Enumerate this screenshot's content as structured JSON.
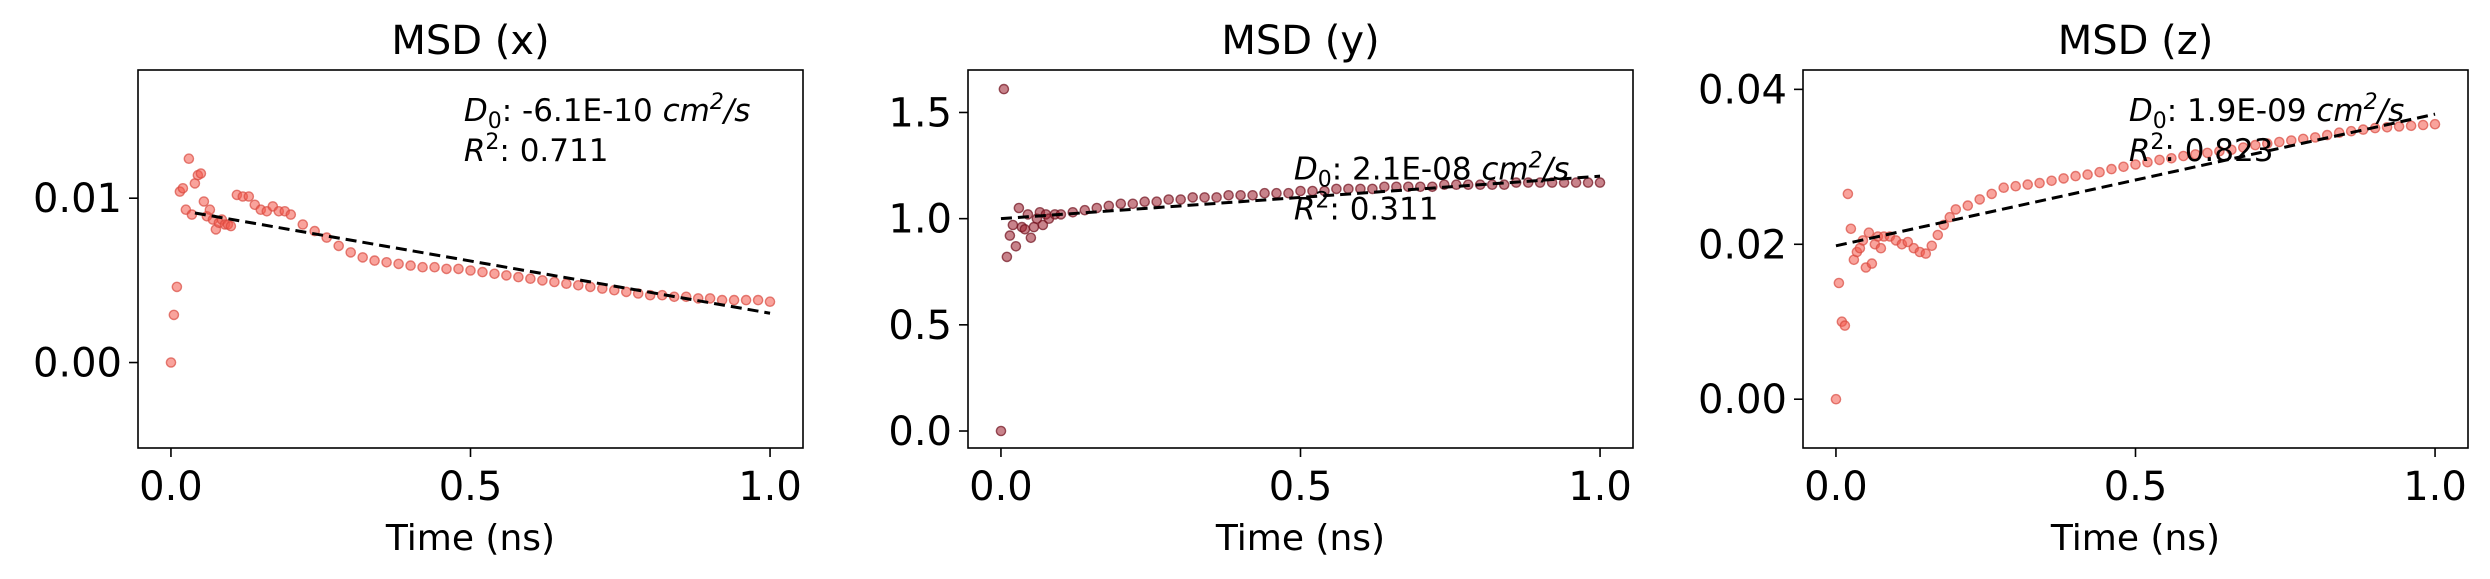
{
  "chart_data": [
    {
      "type": "scatter",
      "title": "MSD (x)",
      "xlabel": "Time (ns)",
      "ylabel": "",
      "xlim": [
        -0.055,
        1.055
      ],
      "ylim": [
        -0.0052,
        0.0178
      ],
      "xticks": [
        "0.0",
        "0.5",
        "1.0"
      ],
      "xtick_values": [
        0,
        0.5,
        1.0
      ],
      "yticks": [
        "0.00",
        "0.01"
      ],
      "ytick_values": [
        0,
        0.01
      ],
      "annotation_d0_label": "D",
      "annotation_d0_sub": "0",
      "annotation_d0_value": ": -6.1E-10 ",
      "annotation_unit": "cm",
      "annotation_unit_exp": "2",
      "annotation_unit_tail": "/s",
      "annotation_r2_label": "R",
      "annotation_r2_exp": "2",
      "annotation_r2_value": ": 0.711",
      "marker_color": "#f4574b",
      "marker_edge": "#d94a40",
      "fit": {
        "x": [
          0.04,
          1.0
        ],
        "y": [
          0.0091,
          0.003
        ]
      },
      "series": [
        {
          "x": [
            0.0,
            0.005,
            0.01,
            0.015,
            0.02,
            0.025,
            0.03,
            0.035,
            0.04,
            0.045,
            0.05,
            0.055,
            0.06,
            0.065,
            0.07,
            0.075,
            0.08,
            0.085,
            0.09,
            0.095,
            0.1,
            0.11,
            0.12,
            0.13,
            0.14,
            0.15,
            0.16,
            0.17,
            0.18,
            0.19,
            0.2,
            0.22,
            0.24,
            0.26,
            0.28,
            0.3,
            0.32,
            0.34,
            0.36,
            0.38,
            0.4,
            0.42,
            0.44,
            0.46,
            0.48,
            0.5,
            0.52,
            0.54,
            0.56,
            0.58,
            0.6,
            0.62,
            0.64,
            0.66,
            0.68,
            0.7,
            0.72,
            0.74,
            0.76,
            0.78,
            0.8,
            0.82,
            0.84,
            0.86,
            0.88,
            0.9,
            0.92,
            0.94,
            0.96,
            0.98,
            1.0
          ],
          "y": [
            0.0,
            0.0029,
            0.0046,
            0.0104,
            0.0106,
            0.0093,
            0.0124,
            0.009,
            0.0109,
            0.0114,
            0.0115,
            0.0098,
            0.0089,
            0.0093,
            0.0087,
            0.0081,
            0.0085,
            0.0087,
            0.0084,
            0.0084,
            0.0083,
            0.0102,
            0.0101,
            0.0101,
            0.0096,
            0.0093,
            0.0092,
            0.0095,
            0.0092,
            0.0092,
            0.009,
            0.0084,
            0.008,
            0.0076,
            0.0071,
            0.0067,
            0.0064,
            0.0062,
            0.0061,
            0.006,
            0.0059,
            0.0058,
            0.0058,
            0.0057,
            0.0057,
            0.0056,
            0.0055,
            0.0054,
            0.0053,
            0.0052,
            0.0051,
            0.005,
            0.0049,
            0.0048,
            0.0047,
            0.0046,
            0.0045,
            0.0044,
            0.0043,
            0.0042,
            0.0041,
            0.0041,
            0.004,
            0.004,
            0.0039,
            0.0039,
            0.0038,
            0.0038,
            0.0038,
            0.0038,
            0.0037
          ]
        }
      ]
    },
    {
      "type": "scatter",
      "title": "MSD (y)",
      "xlabel": "Time (ns)",
      "ylabel": "",
      "xlim": [
        -0.055,
        1.055
      ],
      "ylim": [
        -0.08,
        1.7
      ],
      "xticks": [
        "0.0",
        "0.5",
        "1.0"
      ],
      "xtick_values": [
        0,
        0.5,
        1.0
      ],
      "yticks": [
        "0.0",
        "0.5",
        "1.0",
        "1.5"
      ],
      "ytick_values": [
        0,
        0.5,
        1.0,
        1.5
      ],
      "annotation_d0_label": "D",
      "annotation_d0_sub": "0",
      "annotation_d0_value": ": 2.1E-08 ",
      "annotation_unit": "cm",
      "annotation_unit_exp": "2",
      "annotation_unit_tail": "/s",
      "annotation_r2_label": "R",
      "annotation_r2_exp": "2",
      "annotation_r2_value": ": 0.311",
      "marker_color": "#9a1d2c",
      "marker_edge": "#6f0f1c",
      "fit": {
        "x": [
          0.0,
          1.0
        ],
        "y": [
          1.0,
          1.2
        ]
      },
      "series": [
        {
          "x": [
            0.0,
            0.005,
            0.01,
            0.015,
            0.02,
            0.025,
            0.03,
            0.035,
            0.04,
            0.045,
            0.05,
            0.055,
            0.06,
            0.065,
            0.07,
            0.075,
            0.08,
            0.09,
            0.1,
            0.12,
            0.14,
            0.16,
            0.18,
            0.2,
            0.22,
            0.24,
            0.26,
            0.28,
            0.3,
            0.32,
            0.34,
            0.36,
            0.38,
            0.4,
            0.42,
            0.44,
            0.46,
            0.48,
            0.5,
            0.52,
            0.54,
            0.56,
            0.58,
            0.6,
            0.62,
            0.64,
            0.66,
            0.68,
            0.7,
            0.72,
            0.74,
            0.76,
            0.78,
            0.8,
            0.82,
            0.84,
            0.86,
            0.88,
            0.9,
            0.92,
            0.94,
            0.96,
            0.98,
            1.0
          ],
          "y": [
            0.0,
            1.61,
            0.82,
            0.92,
            0.97,
            0.87,
            1.05,
            0.96,
            0.95,
            1.02,
            0.91,
            0.96,
            1.0,
            1.03,
            0.97,
            1.02,
            1.0,
            1.02,
            1.02,
            1.03,
            1.04,
            1.05,
            1.06,
            1.07,
            1.07,
            1.08,
            1.08,
            1.09,
            1.09,
            1.1,
            1.1,
            1.1,
            1.11,
            1.11,
            1.11,
            1.12,
            1.12,
            1.12,
            1.13,
            1.13,
            1.13,
            1.14,
            1.14,
            1.14,
            1.14,
            1.15,
            1.15,
            1.15,
            1.15,
            1.15,
            1.16,
            1.16,
            1.16,
            1.16,
            1.16,
            1.16,
            1.17,
            1.17,
            1.17,
            1.17,
            1.17,
            1.17,
            1.17,
            1.17
          ]
        }
      ]
    },
    {
      "type": "scatter",
      "title": "MSD (z)",
      "xlabel": "Time (ns)",
      "ylabel": "",
      "xlim": [
        -0.055,
        1.055
      ],
      "ylim": [
        -0.0063,
        0.0425
      ],
      "xticks": [
        "0.0",
        "0.5",
        "1.0"
      ],
      "xtick_values": [
        0,
        0.5,
        1.0
      ],
      "yticks": [
        "0.00",
        "0.02",
        "0.04"
      ],
      "ytick_values": [
        0,
        0.02,
        0.04
      ],
      "annotation_d0_label": "D",
      "annotation_d0_sub": "0",
      "annotation_d0_value": ": 1.9E-09 ",
      "annotation_unit": "cm",
      "annotation_unit_exp": "2",
      "annotation_unit_tail": "/s",
      "annotation_r2_label": "R",
      "annotation_r2_exp": "2",
      "annotation_r2_value": ": 0.823",
      "marker_color": "#f4574b",
      "marker_edge": "#d94a40",
      "fit": {
        "x": [
          0.0,
          1.0
        ],
        "y": [
          0.0198,
          0.0368
        ]
      },
      "series": [
        {
          "x": [
            0.0,
            0.005,
            0.01,
            0.015,
            0.02,
            0.025,
            0.03,
            0.035,
            0.04,
            0.045,
            0.05,
            0.055,
            0.06,
            0.065,
            0.07,
            0.075,
            0.08,
            0.09,
            0.1,
            0.11,
            0.12,
            0.13,
            0.14,
            0.15,
            0.16,
            0.17,
            0.18,
            0.19,
            0.2,
            0.22,
            0.24,
            0.26,
            0.28,
            0.3,
            0.32,
            0.34,
            0.36,
            0.38,
            0.4,
            0.42,
            0.44,
            0.46,
            0.48,
            0.5,
            0.52,
            0.54,
            0.56,
            0.58,
            0.6,
            0.62,
            0.64,
            0.66,
            0.68,
            0.7,
            0.72,
            0.74,
            0.76,
            0.78,
            0.8,
            0.82,
            0.84,
            0.86,
            0.88,
            0.9,
            0.92,
            0.94,
            0.96,
            0.98,
            1.0
          ],
          "y": [
            0.0,
            0.015,
            0.01,
            0.0095,
            0.0265,
            0.022,
            0.018,
            0.019,
            0.0195,
            0.0205,
            0.017,
            0.0215,
            0.0175,
            0.02,
            0.021,
            0.0195,
            0.021,
            0.021,
            0.0205,
            0.02,
            0.0203,
            0.0195,
            0.019,
            0.0188,
            0.0198,
            0.0212,
            0.0225,
            0.0235,
            0.0245,
            0.025,
            0.0258,
            0.0265,
            0.0273,
            0.0275,
            0.0277,
            0.0279,
            0.0282,
            0.0285,
            0.0288,
            0.029,
            0.0293,
            0.0297,
            0.03,
            0.0303,
            0.0306,
            0.0309,
            0.0311,
            0.0314,
            0.0316,
            0.0318,
            0.032,
            0.0322,
            0.0325,
            0.0328,
            0.033,
            0.0332,
            0.0334,
            0.0336,
            0.0338,
            0.0341,
            0.0344,
            0.0346,
            0.0348,
            0.035,
            0.0351,
            0.0352,
            0.0353,
            0.0354,
            0.0355
          ]
        }
      ]
    }
  ]
}
